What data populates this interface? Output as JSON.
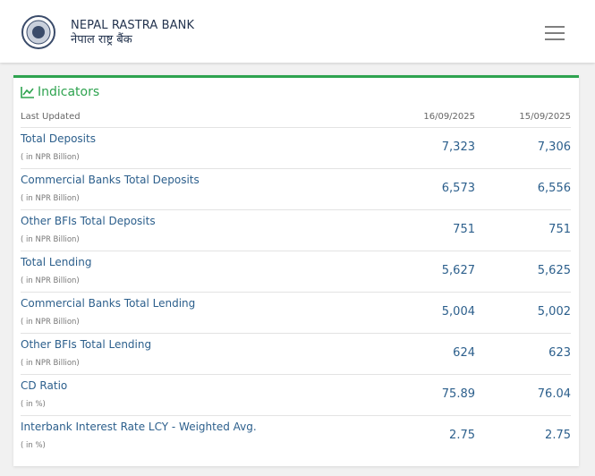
{
  "header": {
    "title": "NEPAL RASTRA BANK",
    "subtitle": "नेपाल राष्ट्र बैंक"
  },
  "indicators": {
    "title": "Indicators",
    "columns": [
      "Last Updated",
      "16/09/2025",
      "15/09/2025"
    ],
    "rows": [
      {
        "name": "Total Deposits",
        "unit": "( in NPR Billion)",
        "values": [
          "7,323",
          "7,306"
        ]
      },
      {
        "name": "Commercial Banks Total Deposits",
        "unit": "( in NPR Billion)",
        "values": [
          "6,573",
          "6,556"
        ]
      },
      {
        "name": "Other BFIs Total Deposits",
        "unit": "( in NPR Billion)",
        "values": [
          "751",
          "751"
        ]
      },
      {
        "name": "Total Lending",
        "unit": "( in NPR Billion)",
        "values": [
          "5,627",
          "5,625"
        ]
      },
      {
        "name": "Commercial Banks Total Lending",
        "unit": "( in NPR Billion)",
        "values": [
          "5,004",
          "5,002"
        ]
      },
      {
        "name": "Other BFIs Total Lending",
        "unit": "( in NPR Billion)",
        "values": [
          "624",
          "623"
        ]
      },
      {
        "name": "CD Ratio",
        "unit": "( in %)",
        "values": [
          "75.89",
          "76.04"
        ]
      },
      {
        "name": "Interbank Interest Rate LCY - Weighted Avg.",
        "unit": "( in %)",
        "values": [
          "2.75",
          "2.75"
        ]
      }
    ]
  }
}
